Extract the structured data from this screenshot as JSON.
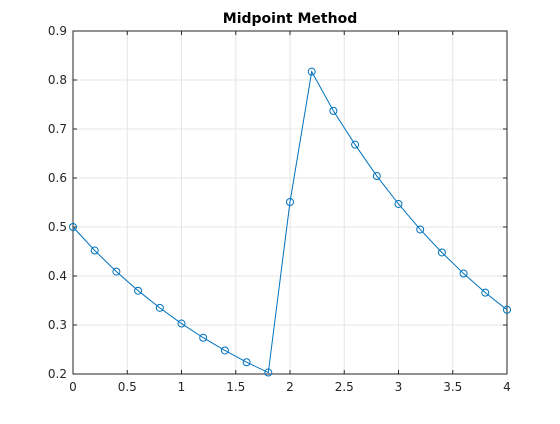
{
  "chart_data": {
    "type": "line",
    "title": "Midpoint Method",
    "xlabel": "",
    "ylabel": "",
    "xlim": [
      0,
      4
    ],
    "ylim": [
      0.2,
      0.9
    ],
    "xticks": [
      0,
      0.5,
      1,
      1.5,
      2,
      2.5,
      3,
      3.5,
      4
    ],
    "xtick_labels": [
      "0",
      "0.5",
      "1",
      "1.5",
      "2",
      "2.5",
      "3",
      "3.5",
      "4"
    ],
    "yticks": [
      0.2,
      0.3,
      0.4,
      0.5,
      0.6,
      0.7,
      0.8,
      0.9
    ],
    "ytick_labels": [
      "0.2",
      "0.3",
      "0.4",
      "0.5",
      "0.6",
      "0.7",
      "0.8",
      "0.9"
    ],
    "grid": true,
    "marker": "circle",
    "colors": {
      "series": "#0072bd",
      "grid": "#e6e6e6",
      "axis": "#262626"
    },
    "series": [
      {
        "x": [
          0,
          0.2,
          0.4,
          0.6,
          0.8,
          1.0,
          1.2,
          1.4,
          1.6,
          1.8,
          2.0,
          2.2,
          2.4,
          2.6,
          2.8,
          3.0,
          3.2,
          3.4,
          3.6,
          3.8,
          4.0
        ],
        "y": [
          0.5,
          0.452,
          0.409,
          0.37,
          0.335,
          0.303,
          0.274,
          0.248,
          0.224,
          0.203,
          0.551,
          0.817,
          0.737,
          0.668,
          0.604,
          0.547,
          0.495,
          0.448,
          0.405,
          0.366,
          0.331
        ]
      }
    ]
  }
}
